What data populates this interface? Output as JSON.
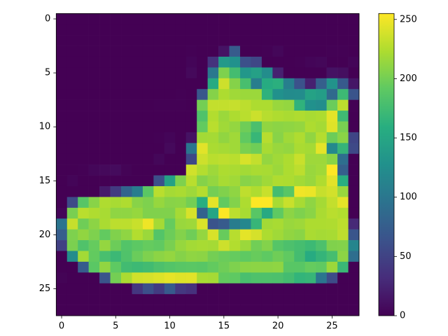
{
  "chart_data": {
    "type": "heatmap",
    "cmap": "viridis",
    "clim": [
      0,
      255
    ],
    "xlim": [
      -0.5,
      27.5
    ],
    "ylim": [
      27.5,
      -0.5
    ],
    "xticks": [
      0,
      5,
      10,
      15,
      20,
      25
    ],
    "yticks": [
      0,
      5,
      10,
      15,
      20,
      25
    ],
    "colorbar_ticks": [
      0,
      50,
      100,
      150,
      200,
      250
    ],
    "z": [
      [
        0,
        0,
        0,
        0,
        0,
        0,
        0,
        0,
        0,
        0,
        0,
        0,
        0,
        0,
        0,
        0,
        0,
        0,
        0,
        0,
        0,
        0,
        0,
        0,
        0,
        0,
        0,
        0
      ],
      [
        0,
        0,
        0,
        0,
        0,
        0,
        0,
        0,
        0,
        0,
        0,
        0,
        0,
        0,
        0,
        0,
        0,
        0,
        0,
        0,
        0,
        0,
        0,
        0,
        0,
        0,
        0,
        0
      ],
      [
        0,
        0,
        0,
        0,
        0,
        0,
        0,
        0,
        0,
        0,
        0,
        0,
        0,
        0,
        0,
        0,
        0,
        0,
        0,
        0,
        0,
        0,
        0,
        0,
        0,
        0,
        0,
        0
      ],
      [
        0,
        0,
        0,
        0,
        0,
        0,
        0,
        0,
        0,
        0,
        0,
        0,
        1,
        0,
        0,
        13,
        73,
        0,
        0,
        1,
        4,
        0,
        0,
        0,
        0,
        1,
        1,
        0
      ],
      [
        0,
        0,
        0,
        0,
        0,
        0,
        0,
        0,
        0,
        0,
        0,
        0,
        3,
        0,
        36,
        136,
        127,
        62,
        54,
        0,
        0,
        0,
        1,
        3,
        4,
        0,
        0,
        3
      ],
      [
        0,
        0,
        0,
        0,
        0,
        0,
        0,
        0,
        0,
        0,
        0,
        0,
        6,
        0,
        102,
        204,
        176,
        134,
        144,
        123,
        23,
        0,
        0,
        0,
        0,
        12,
        10,
        0
      ],
      [
        0,
        0,
        0,
        0,
        0,
        0,
        0,
        0,
        0,
        0,
        0,
        0,
        0,
        0,
        155,
        236,
        207,
        178,
        107,
        156,
        161,
        109,
        64,
        23,
        77,
        130,
        72,
        15
      ],
      [
        0,
        0,
        0,
        0,
        0,
        0,
        0,
        0,
        0,
        0,
        0,
        1,
        0,
        69,
        207,
        223,
        218,
        216,
        216,
        163,
        127,
        121,
        122,
        146,
        141,
        88,
        172,
        66
      ],
      [
        0,
        0,
        0,
        0,
        0,
        0,
        0,
        0,
        0,
        1,
        1,
        1,
        0,
        200,
        232,
        232,
        233,
        229,
        223,
        223,
        215,
        213,
        164,
        127,
        123,
        196,
        229,
        0
      ],
      [
        0,
        0,
        0,
        0,
        0,
        0,
        0,
        0,
        0,
        0,
        0,
        0,
        0,
        183,
        225,
        216,
        223,
        228,
        235,
        227,
        224,
        222,
        224,
        221,
        223,
        245,
        173,
        0
      ],
      [
        0,
        0,
        0,
        0,
        0,
        0,
        0,
        0,
        0,
        0,
        0,
        0,
        0,
        193,
        228,
        218,
        213,
        198,
        180,
        212,
        210,
        211,
        213,
        223,
        220,
        243,
        202,
        0
      ],
      [
        0,
        0,
        0,
        0,
        0,
        0,
        0,
        0,
        0,
        1,
        3,
        0,
        12,
        219,
        220,
        212,
        218,
        192,
        169,
        227,
        208,
        218,
        224,
        212,
        226,
        197,
        209,
        52
      ],
      [
        0,
        0,
        0,
        0,
        0,
        0,
        0,
        0,
        0,
        0,
        6,
        0,
        99,
        244,
        222,
        220,
        218,
        203,
        198,
        221,
        215,
        213,
        222,
        220,
        245,
        119,
        167,
        56
      ],
      [
        0,
        0,
        0,
        0,
        0,
        0,
        0,
        0,
        0,
        4,
        0,
        0,
        55,
        236,
        228,
        230,
        228,
        240,
        232,
        213,
        218,
        223,
        234,
        217,
        217,
        209,
        92,
        0
      ],
      [
        0,
        0,
        1,
        4,
        6,
        7,
        2,
        0,
        0,
        0,
        0,
        0,
        237,
        226,
        217,
        223,
        222,
        219,
        222,
        221,
        216,
        223,
        229,
        215,
        218,
        255,
        77,
        0
      ],
      [
        0,
        3,
        0,
        0,
        0,
        0,
        0,
        0,
        0,
        62,
        145,
        204,
        228,
        207,
        213,
        221,
        218,
        208,
        211,
        218,
        224,
        223,
        219,
        215,
        224,
        244,
        159,
        0
      ],
      [
        0,
        0,
        0,
        0,
        18,
        44,
        82,
        107,
        189,
        228,
        220,
        222,
        217,
        226,
        200,
        205,
        211,
        230,
        224,
        234,
        176,
        188,
        250,
        248,
        233,
        238,
        215,
        0
      ],
      [
        0,
        57,
        187,
        208,
        224,
        221,
        224,
        208,
        204,
        214,
        208,
        209,
        200,
        159,
        245,
        193,
        206,
        223,
        255,
        255,
        221,
        234,
        221,
        211,
        220,
        232,
        246,
        0
      ],
      [
        3,
        202,
        228,
        224,
        221,
        211,
        211,
        214,
        205,
        205,
        205,
        220,
        240,
        80,
        150,
        255,
        229,
        221,
        188,
        154,
        191,
        210,
        204,
        209,
        222,
        228,
        225,
        0
      ],
      [
        98,
        233,
        198,
        210,
        222,
        229,
        229,
        234,
        249,
        220,
        194,
        215,
        217,
        241,
        65,
        73,
        106,
        117,
        168,
        219,
        221,
        215,
        217,
        223,
        223,
        224,
        229,
        29
      ],
      [
        75,
        204,
        212,
        204,
        193,
        205,
        211,
        225,
        216,
        185,
        197,
        206,
        198,
        213,
        240,
        195,
        227,
        245,
        239,
        223,
        218,
        212,
        209,
        222,
        220,
        221,
        230,
        67
      ],
      [
        48,
        203,
        183,
        194,
        213,
        197,
        185,
        190,
        194,
        192,
        202,
        214,
        219,
        221,
        220,
        236,
        225,
        216,
        199,
        206,
        186,
        181,
        177,
        172,
        181,
        205,
        206,
        115
      ],
      [
        0,
        122,
        219,
        193,
        179,
        171,
        183,
        196,
        204,
        210,
        213,
        207,
        211,
        210,
        200,
        196,
        194,
        191,
        195,
        191,
        198,
        192,
        176,
        156,
        167,
        177,
        210,
        92
      ],
      [
        0,
        0,
        74,
        189,
        212,
        191,
        175,
        172,
        175,
        181,
        185,
        188,
        189,
        188,
        193,
        198,
        204,
        209,
        210,
        210,
        211,
        188,
        188,
        194,
        192,
        216,
        170,
        0
      ],
      [
        2,
        0,
        0,
        0,
        66,
        200,
        222,
        237,
        239,
        242,
        246,
        243,
        244,
        221,
        220,
        193,
        191,
        179,
        182,
        182,
        181,
        176,
        166,
        168,
        99,
        58,
        0,
        0
      ],
      [
        0,
        0,
        0,
        0,
        0,
        0,
        0,
        40,
        61,
        44,
        72,
        41,
        35,
        0,
        0,
        0,
        0,
        0,
        0,
        0,
        0,
        0,
        0,
        0,
        0,
        0,
        0,
        0
      ],
      [
        0,
        0,
        0,
        0,
        0,
        0,
        0,
        0,
        0,
        0,
        0,
        0,
        0,
        0,
        0,
        0,
        0,
        0,
        0,
        0,
        0,
        0,
        0,
        0,
        0,
        0,
        0,
        0
      ],
      [
        0,
        0,
        0,
        0,
        0,
        0,
        0,
        0,
        0,
        0,
        0,
        0,
        0,
        0,
        0,
        0,
        0,
        0,
        0,
        0,
        0,
        0,
        0,
        0,
        0,
        0,
        0,
        0
      ]
    ]
  }
}
